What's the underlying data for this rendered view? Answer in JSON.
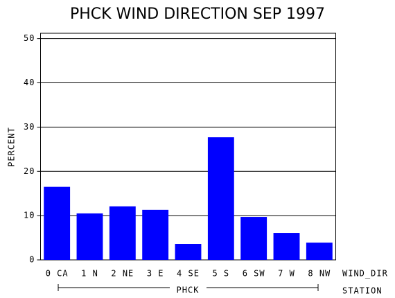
{
  "chart_data": {
    "type": "bar",
    "title": "PHCK WIND DIRECTION SEP 1997",
    "ylabel": "PERCENT",
    "xlabel": "WIND_DIR",
    "group": "PHCK",
    "group_label": "STATION",
    "categories": [
      "0 CA",
      "1 N",
      "2 NE",
      "3 E",
      "4 SE",
      "5 S",
      "6 SW",
      "7 W",
      "8 NW"
    ],
    "values": [
      16.5,
      10.5,
      12.1,
      11.3,
      3.6,
      27.7,
      9.7,
      6.1,
      3.9
    ],
    "color": "#0000ff",
    "ylim": [
      0,
      51.2
    ],
    "yticks": [
      0,
      10,
      20,
      30,
      40,
      50
    ],
    "grid": true
  }
}
